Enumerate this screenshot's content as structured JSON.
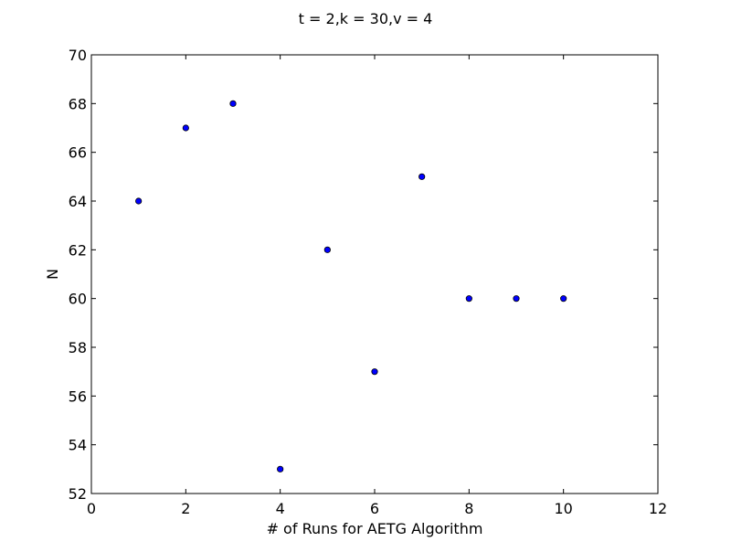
{
  "chart_data": {
    "type": "scatter",
    "title": "t = 2,k = 30,v = 4",
    "xlabel": "# of Runs for AETG Algorithm",
    "ylabel": "N",
    "xlim": [
      0,
      12
    ],
    "ylim": [
      52,
      70
    ],
    "xticks": [
      "0",
      "2",
      "4",
      "6",
      "8",
      "10",
      "12"
    ],
    "yticks": [
      "52",
      "54",
      "56",
      "58",
      "60",
      "62",
      "64",
      "66",
      "68",
      "70"
    ],
    "grid": false,
    "legend": "none",
    "marker_color": "#0000ff",
    "marker_edge_color": "#000000",
    "points": [
      {
        "x": 1,
        "y": 64
      },
      {
        "x": 2,
        "y": 67
      },
      {
        "x": 3,
        "y": 68
      },
      {
        "x": 4,
        "y": 53
      },
      {
        "x": 5,
        "y": 62
      },
      {
        "x": 6,
        "y": 57
      },
      {
        "x": 7,
        "y": 65
      },
      {
        "x": 8,
        "y": 60
      },
      {
        "x": 9,
        "y": 60
      },
      {
        "x": 10,
        "y": 60
      }
    ]
  }
}
